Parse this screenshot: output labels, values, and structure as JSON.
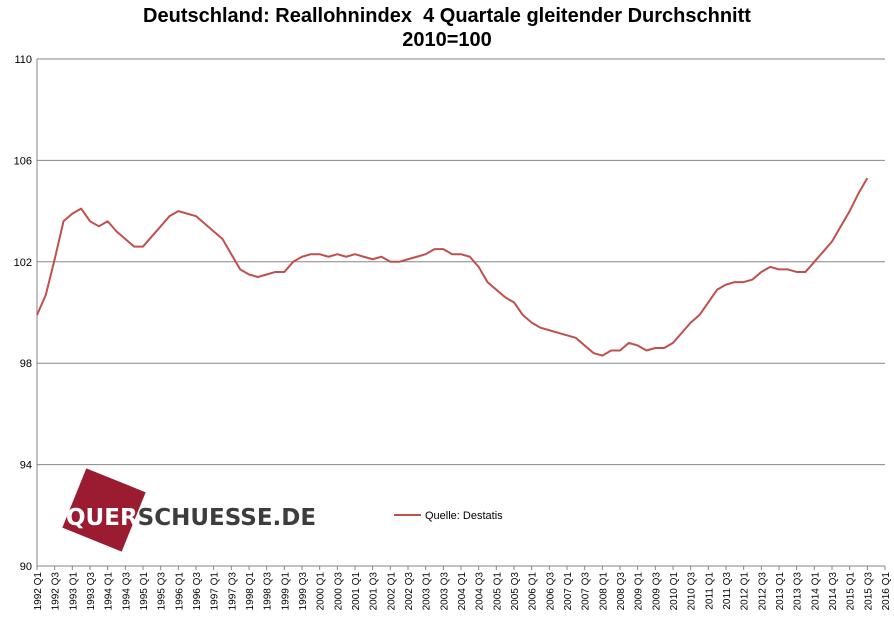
{
  "chart_data": {
    "type": "line",
    "title": "Deutschland: Reallohnindex  4 Quartale gleitender Durchschnitt",
    "subtitle": "2010=100",
    "ylim": [
      90,
      110
    ],
    "yticks": [
      90,
      94,
      98,
      102,
      106,
      110
    ],
    "grid": true,
    "legend_position": "bottom-center",
    "x_labels": [
      "1992 Q1",
      "1992 Q3",
      "1993 Q1",
      "1993 Q3",
      "1994 Q1",
      "1994 Q3",
      "1995 Q1",
      "1995 Q3",
      "1996 Q1",
      "1996 Q3",
      "1997 Q1",
      "1997 Q3",
      "1998 Q1",
      "1998 Q3",
      "1999 Q1",
      "1999 Q3",
      "2000 Q1",
      "2000 Q3",
      "2001 Q1",
      "2001 Q3",
      "2002 Q1",
      "2002 Q3",
      "2003 Q1",
      "2003 Q3",
      "2004 Q1",
      "2004 Q3",
      "2005 Q1",
      "2005 Q3",
      "2006 Q1",
      "2006 Q3",
      "2007 Q1",
      "2007 Q3",
      "2008 Q1",
      "2008 Q3",
      "2009 Q1",
      "2009 Q3",
      "2010 Q1",
      "2010 Q3",
      "2011 Q1",
      "2011 Q3",
      "2012 Q1",
      "2012 Q3",
      "2013 Q1",
      "2013 Q3",
      "2014 Q1",
      "2014 Q3",
      "2015 Q1",
      "2015 Q3",
      "2016 Q1"
    ],
    "x": [
      "1992 Q1",
      "1992 Q2",
      "1992 Q3",
      "1992 Q4",
      "1993 Q1",
      "1993 Q2",
      "1993 Q3",
      "1993 Q4",
      "1994 Q1",
      "1994 Q2",
      "1994 Q3",
      "1994 Q4",
      "1995 Q1",
      "1995 Q2",
      "1995 Q3",
      "1995 Q4",
      "1996 Q1",
      "1996 Q2",
      "1996 Q3",
      "1996 Q4",
      "1997 Q1",
      "1997 Q2",
      "1997 Q3",
      "1997 Q4",
      "1998 Q1",
      "1998 Q2",
      "1998 Q3",
      "1998 Q4",
      "1999 Q1",
      "1999 Q2",
      "1999 Q3",
      "1999 Q4",
      "2000 Q1",
      "2000 Q2",
      "2000 Q3",
      "2000 Q4",
      "2001 Q1",
      "2001 Q2",
      "2001 Q3",
      "2001 Q4",
      "2002 Q1",
      "2002 Q2",
      "2002 Q3",
      "2002 Q4",
      "2003 Q1",
      "2003 Q2",
      "2003 Q3",
      "2003 Q4",
      "2004 Q1",
      "2004 Q2",
      "2004 Q3",
      "2004 Q4",
      "2005 Q1",
      "2005 Q2",
      "2005 Q3",
      "2005 Q4",
      "2006 Q1",
      "2006 Q2",
      "2006 Q3",
      "2006 Q4",
      "2007 Q1",
      "2007 Q2",
      "2007 Q3",
      "2007 Q4",
      "2008 Q1",
      "2008 Q2",
      "2008 Q3",
      "2008 Q4",
      "2009 Q1",
      "2009 Q2",
      "2009 Q3",
      "2009 Q4",
      "2010 Q1",
      "2010 Q2",
      "2010 Q3",
      "2010 Q4",
      "2011 Q1",
      "2011 Q2",
      "2011 Q3",
      "2011 Q4",
      "2012 Q1",
      "2012 Q2",
      "2012 Q3",
      "2012 Q4",
      "2013 Q1",
      "2013 Q2",
      "2013 Q3",
      "2013 Q4",
      "2014 Q1",
      "2014 Q2",
      "2014 Q3",
      "2014 Q4",
      "2015 Q1",
      "2015 Q2",
      "2015 Q3"
    ],
    "series": [
      {
        "name": "Quelle: Destatis",
        "color": "#c0504d",
        "values": [
          99.9,
          100.7,
          102.1,
          103.6,
          103.9,
          104.1,
          103.6,
          103.4,
          103.6,
          103.2,
          102.9,
          102.6,
          102.6,
          103.0,
          103.4,
          103.8,
          104.0,
          103.9,
          103.8,
          103.5,
          103.2,
          102.9,
          102.3,
          101.7,
          101.5,
          101.4,
          101.5,
          101.6,
          101.6,
          102.0,
          102.2,
          102.3,
          102.3,
          102.2,
          102.3,
          102.2,
          102.3,
          102.2,
          102.1,
          102.2,
          102.0,
          102.0,
          102.1,
          102.2,
          102.3,
          102.5,
          102.5,
          102.3,
          102.3,
          102.2,
          101.8,
          101.2,
          100.9,
          100.6,
          100.4,
          99.9,
          99.6,
          99.4,
          99.3,
          99.2,
          99.1,
          99.0,
          98.7,
          98.4,
          98.3,
          98.5,
          98.5,
          98.8,
          98.7,
          98.5,
          98.6,
          98.6,
          98.8,
          99.2,
          99.6,
          99.9,
          100.4,
          100.9,
          101.1,
          101.2,
          101.2,
          101.3,
          101.6,
          101.8,
          101.7,
          101.7,
          101.6,
          101.6,
          102.0,
          102.4,
          102.8,
          103.4,
          104.0,
          104.7,
          105.3
        ]
      }
    ]
  },
  "watermark": {
    "text": "QUERSCHUESSE.DE",
    "part1": "QUER",
    "part2": "SCHUESSE.DE",
    "box_color": "#9b1b30",
    "text_color": "#3d3d3d"
  }
}
